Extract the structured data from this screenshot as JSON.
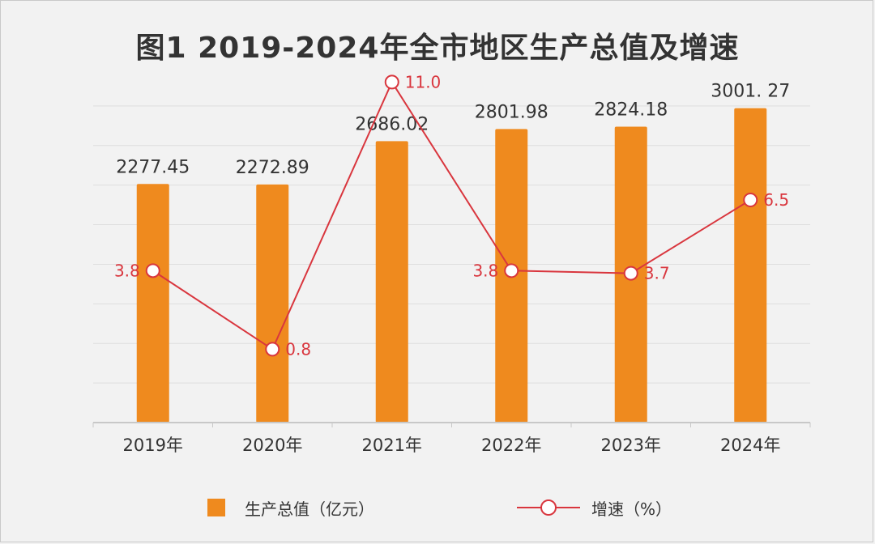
{
  "title": "图1 2019-2024年全市地区生产总值及增速",
  "colors": {
    "bar": "#ef8a1e",
    "line": "#d9363e",
    "grid": "#dedede",
    "axis": "#c8c8c8",
    "text": "#333333"
  },
  "chart_data": {
    "type": "bar",
    "categories": [
      "2019年",
      "2020年",
      "2021年",
      "2022年",
      "2023年",
      "2024年"
    ],
    "series": [
      {
        "name": "生产总值（亿元）",
        "type": "bar",
        "axis": "left",
        "values": [
          2277.45,
          2272.89,
          2686.02,
          2801.98,
          2824.18,
          3001.27
        ],
        "labels": [
          "2277.45",
          "2272.89",
          "2686.02",
          "2801.98",
          "2824.18",
          "3001. 27"
        ]
      },
      {
        "name": "增速（%）",
        "type": "line",
        "axis": "right",
        "values": [
          3.8,
          0.8,
          11.0,
          3.8,
          3.7,
          6.5
        ],
        "labels": [
          "3.8",
          "0.8",
          "11.0",
          "3.8",
          "3.7",
          "6.5"
        ]
      }
    ],
    "ylim": [
      0,
      3400
    ],
    "y2lim": [
      -2,
      11.6
    ],
    "grid": true,
    "legend": "bottom"
  },
  "legend": {
    "bar_label": "生产总值（亿元）",
    "line_label": "增速（%）"
  }
}
